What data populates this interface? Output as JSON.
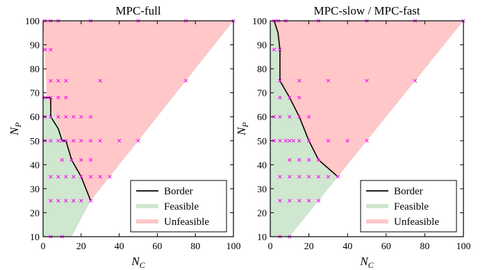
{
  "colors": {
    "feasible": "#cfe6cf",
    "unfeasible": "#ffc7c7",
    "border": "#000000",
    "marker": "#ff00ff"
  },
  "chart_data": [
    {
      "type": "scatter",
      "title": "MPC-full",
      "xlabel": "N_C",
      "ylabel": "N_P",
      "xlim": [
        0,
        100
      ],
      "ylim": [
        10,
        100
      ],
      "xticks": [
        0,
        20,
        40,
        60,
        80,
        100
      ],
      "yticks": [
        10,
        20,
        30,
        40,
        50,
        60,
        70,
        80,
        90,
        100
      ],
      "legend": {
        "placement": "bottom-right",
        "entries": [
          "Border",
          "Feasible",
          "Unfeasible"
        ]
      },
      "unfeasible_region": [
        [
          0,
          100
        ],
        [
          100,
          100
        ],
        [
          25,
          25
        ],
        [
          2,
          68
        ]
      ],
      "feasible_region": [
        [
          0,
          10
        ],
        [
          15,
          10
        ],
        [
          25,
          25
        ],
        [
          2,
          68
        ],
        [
          0,
          68
        ]
      ],
      "border": [
        [
          0,
          68
        ],
        [
          4,
          68
        ],
        [
          4,
          60
        ],
        [
          8,
          55
        ],
        [
          10,
          50
        ],
        [
          12,
          50
        ],
        [
          15,
          42
        ],
        [
          20,
          35
        ],
        [
          25,
          25
        ]
      ],
      "points": [
        [
          1,
          100
        ],
        [
          4,
          100
        ],
        [
          8,
          100
        ],
        [
          25,
          100
        ],
        [
          50,
          100
        ],
        [
          75,
          100
        ],
        [
          100,
          100
        ],
        [
          1,
          88
        ],
        [
          4,
          88
        ],
        [
          4,
          75
        ],
        [
          8,
          75
        ],
        [
          12,
          75
        ],
        [
          30,
          75
        ],
        [
          75,
          75
        ],
        [
          1,
          68
        ],
        [
          4,
          68
        ],
        [
          8,
          68
        ],
        [
          12,
          68
        ],
        [
          1,
          60
        ],
        [
          4,
          60
        ],
        [
          8,
          60
        ],
        [
          12,
          60
        ],
        [
          16,
          60
        ],
        [
          20,
          60
        ],
        [
          25,
          60
        ],
        [
          1,
          50
        ],
        [
          4,
          50
        ],
        [
          8,
          50
        ],
        [
          10,
          50
        ],
        [
          12,
          50
        ],
        [
          16,
          50
        ],
        [
          20,
          50
        ],
        [
          25,
          50
        ],
        [
          30,
          50
        ],
        [
          40,
          50
        ],
        [
          50,
          50
        ],
        [
          10,
          42
        ],
        [
          15,
          42
        ],
        [
          20,
          42
        ],
        [
          25,
          42
        ],
        [
          4,
          35
        ],
        [
          8,
          35
        ],
        [
          12,
          35
        ],
        [
          16,
          35
        ],
        [
          20,
          35
        ],
        [
          25,
          35
        ],
        [
          30,
          35
        ],
        [
          35,
          35
        ],
        [
          4,
          25
        ],
        [
          8,
          25
        ],
        [
          12,
          25
        ],
        [
          16,
          25
        ],
        [
          20,
          25
        ],
        [
          25,
          25
        ],
        [
          4,
          10
        ],
        [
          10,
          10
        ]
      ]
    },
    {
      "type": "scatter",
      "title": "MPC-slow / MPC-fast",
      "xlabel": "N_C",
      "ylabel": "N_P",
      "xlim": [
        0,
        100
      ],
      "ylim": [
        10,
        100
      ],
      "xticks": [
        0,
        20,
        40,
        60,
        80,
        100
      ],
      "yticks": [
        10,
        20,
        30,
        40,
        50,
        60,
        70,
        80,
        90,
        100
      ],
      "legend": {
        "placement": "bottom-right",
        "entries": [
          "Border",
          "Feasible",
          "Unfeasible"
        ]
      },
      "unfeasible_region": [
        [
          2,
          100
        ],
        [
          100,
          100
        ],
        [
          35,
          35
        ],
        [
          25,
          42
        ],
        [
          20,
          50
        ],
        [
          15,
          60
        ],
        [
          10,
          68
        ],
        [
          5,
          75
        ],
        [
          5,
          88
        ],
        [
          4,
          95
        ]
      ],
      "feasible_region": [
        [
          0,
          10
        ],
        [
          10,
          10
        ],
        [
          35,
          35
        ],
        [
          25,
          42
        ],
        [
          20,
          50
        ],
        [
          15,
          60
        ],
        [
          10,
          68
        ],
        [
          5,
          75
        ],
        [
          5,
          88
        ],
        [
          4,
          95
        ],
        [
          2,
          100
        ],
        [
          0,
          100
        ]
      ],
      "border": [
        [
          2,
          100
        ],
        [
          4,
          95
        ],
        [
          5,
          88
        ],
        [
          5,
          75
        ],
        [
          10,
          68
        ],
        [
          15,
          60
        ],
        [
          20,
          50
        ],
        [
          25,
          42
        ],
        [
          35,
          35
        ]
      ],
      "points": [
        [
          2,
          100
        ],
        [
          4,
          100
        ],
        [
          8,
          100
        ],
        [
          25,
          100
        ],
        [
          50,
          100
        ],
        [
          75,
          100
        ],
        [
          100,
          100
        ],
        [
          2,
          88
        ],
        [
          5,
          88
        ],
        [
          5,
          75
        ],
        [
          15,
          75
        ],
        [
          30,
          75
        ],
        [
          50,
          75
        ],
        [
          75,
          75
        ],
        [
          5,
          68
        ],
        [
          10,
          68
        ],
        [
          15,
          68
        ],
        [
          2,
          60
        ],
        [
          5,
          60
        ],
        [
          10,
          60
        ],
        [
          15,
          60
        ],
        [
          20,
          60
        ],
        [
          2,
          50
        ],
        [
          5,
          50
        ],
        [
          8,
          50
        ],
        [
          10,
          50
        ],
        [
          12,
          50
        ],
        [
          15,
          50
        ],
        [
          20,
          50
        ],
        [
          30,
          50
        ],
        [
          40,
          50
        ],
        [
          50,
          50
        ],
        [
          10,
          42
        ],
        [
          15,
          42
        ],
        [
          20,
          42
        ],
        [
          25,
          42
        ],
        [
          5,
          35
        ],
        [
          10,
          35
        ],
        [
          15,
          35
        ],
        [
          20,
          35
        ],
        [
          25,
          35
        ],
        [
          30,
          35
        ],
        [
          35,
          35
        ],
        [
          5,
          25
        ],
        [
          10,
          25
        ],
        [
          15,
          25
        ],
        [
          20,
          25
        ],
        [
          25,
          25
        ],
        [
          5,
          10
        ],
        [
          10,
          10
        ]
      ]
    }
  ]
}
